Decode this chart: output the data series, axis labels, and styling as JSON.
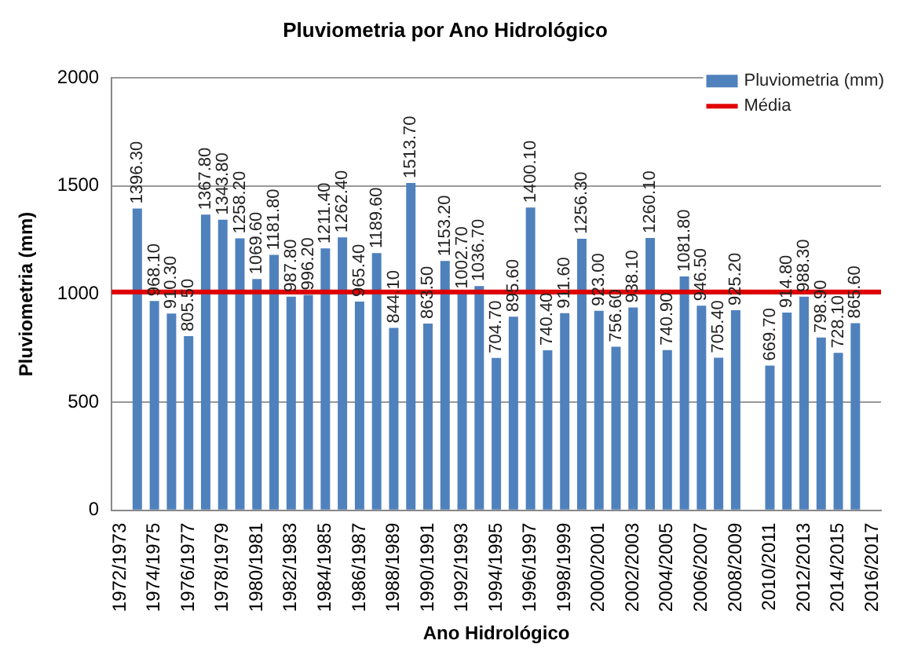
{
  "chart_data": {
    "type": "bar",
    "title": "Pluviometria por Ano Hidrológico",
    "xlabel": "Ano Hidrológico",
    "ylabel": "Pluviometria (mm)",
    "categories": [
      "1972/1973",
      null,
      "1974/1975",
      null,
      "1976/1977",
      null,
      "1978/1979",
      null,
      "1980/1981",
      null,
      "1982/1983",
      null,
      "1984/1985",
      null,
      "1986/1987",
      null,
      "1988/1989",
      null,
      "1990/1991",
      null,
      "1992/1993",
      null,
      "1994/1995",
      null,
      "1996/1997",
      null,
      "1998/1999",
      null,
      "2000/2001",
      null,
      "2002/2003",
      null,
      "2004/2005",
      null,
      "2006/2007",
      null,
      "2008/2009",
      null,
      "2010/2011",
      null,
      "2012/2013",
      null,
      "2014/2015",
      null,
      "2016/2017"
    ],
    "series": [
      {
        "name": "Pluviometria (mm)",
        "color": "#4f81bd",
        "values": [
          null,
          1396.3,
          968.1,
          910.3,
          805.5,
          1367.8,
          1343.8,
          1258.2,
          1069.6,
          1181.8,
          987.8,
          996.2,
          1211.4,
          1262.4,
          965.4,
          1189.6,
          844.1,
          1513.7,
          863.5,
          1153.2,
          1002.7,
          1036.7,
          704.7,
          895.6,
          1400.1,
          740.4,
          911.6,
          1256.3,
          923.0,
          756.6,
          938.1,
          1260.1,
          740.9,
          1081.8,
          946.5,
          705.4,
          925.2,
          null,
          669.7,
          914.8,
          988.3,
          798.9,
          728.1,
          865.6,
          null
        ],
        "value_labels": [
          null,
          "1396.30",
          "968.10",
          "910.30",
          "805.50",
          "1367.80",
          "1343.80",
          "1258.20",
          "1069.60",
          "1181.80",
          "987.80",
          "996.20",
          "1211.40",
          "1262.40",
          "965.40",
          "1189.60",
          "844.10",
          "1513.70",
          "863.50",
          "1153.20",
          "1002.70",
          "1036.70",
          "704.70",
          "895.60",
          "1400.10",
          "740.40",
          "911.60",
          "1256.30",
          "923.00",
          "756.60",
          "938.10",
          "1260.10",
          "740.90",
          "1081.80",
          "946.50",
          "705.40",
          "925.20",
          null,
          "669.70",
          "914.80",
          "988.30",
          "798.90",
          "728.10",
          "865.60",
          null
        ]
      }
    ],
    "ref_lines": [
      {
        "axis": "y",
        "value": 1010,
        "label": "Média",
        "color": "#e00000"
      }
    ],
    "ylim": [
      0,
      2000
    ],
    "yticks": [
      0,
      500,
      1000,
      1500,
      2000
    ],
    "grid": "y",
    "legend": "top right"
  }
}
